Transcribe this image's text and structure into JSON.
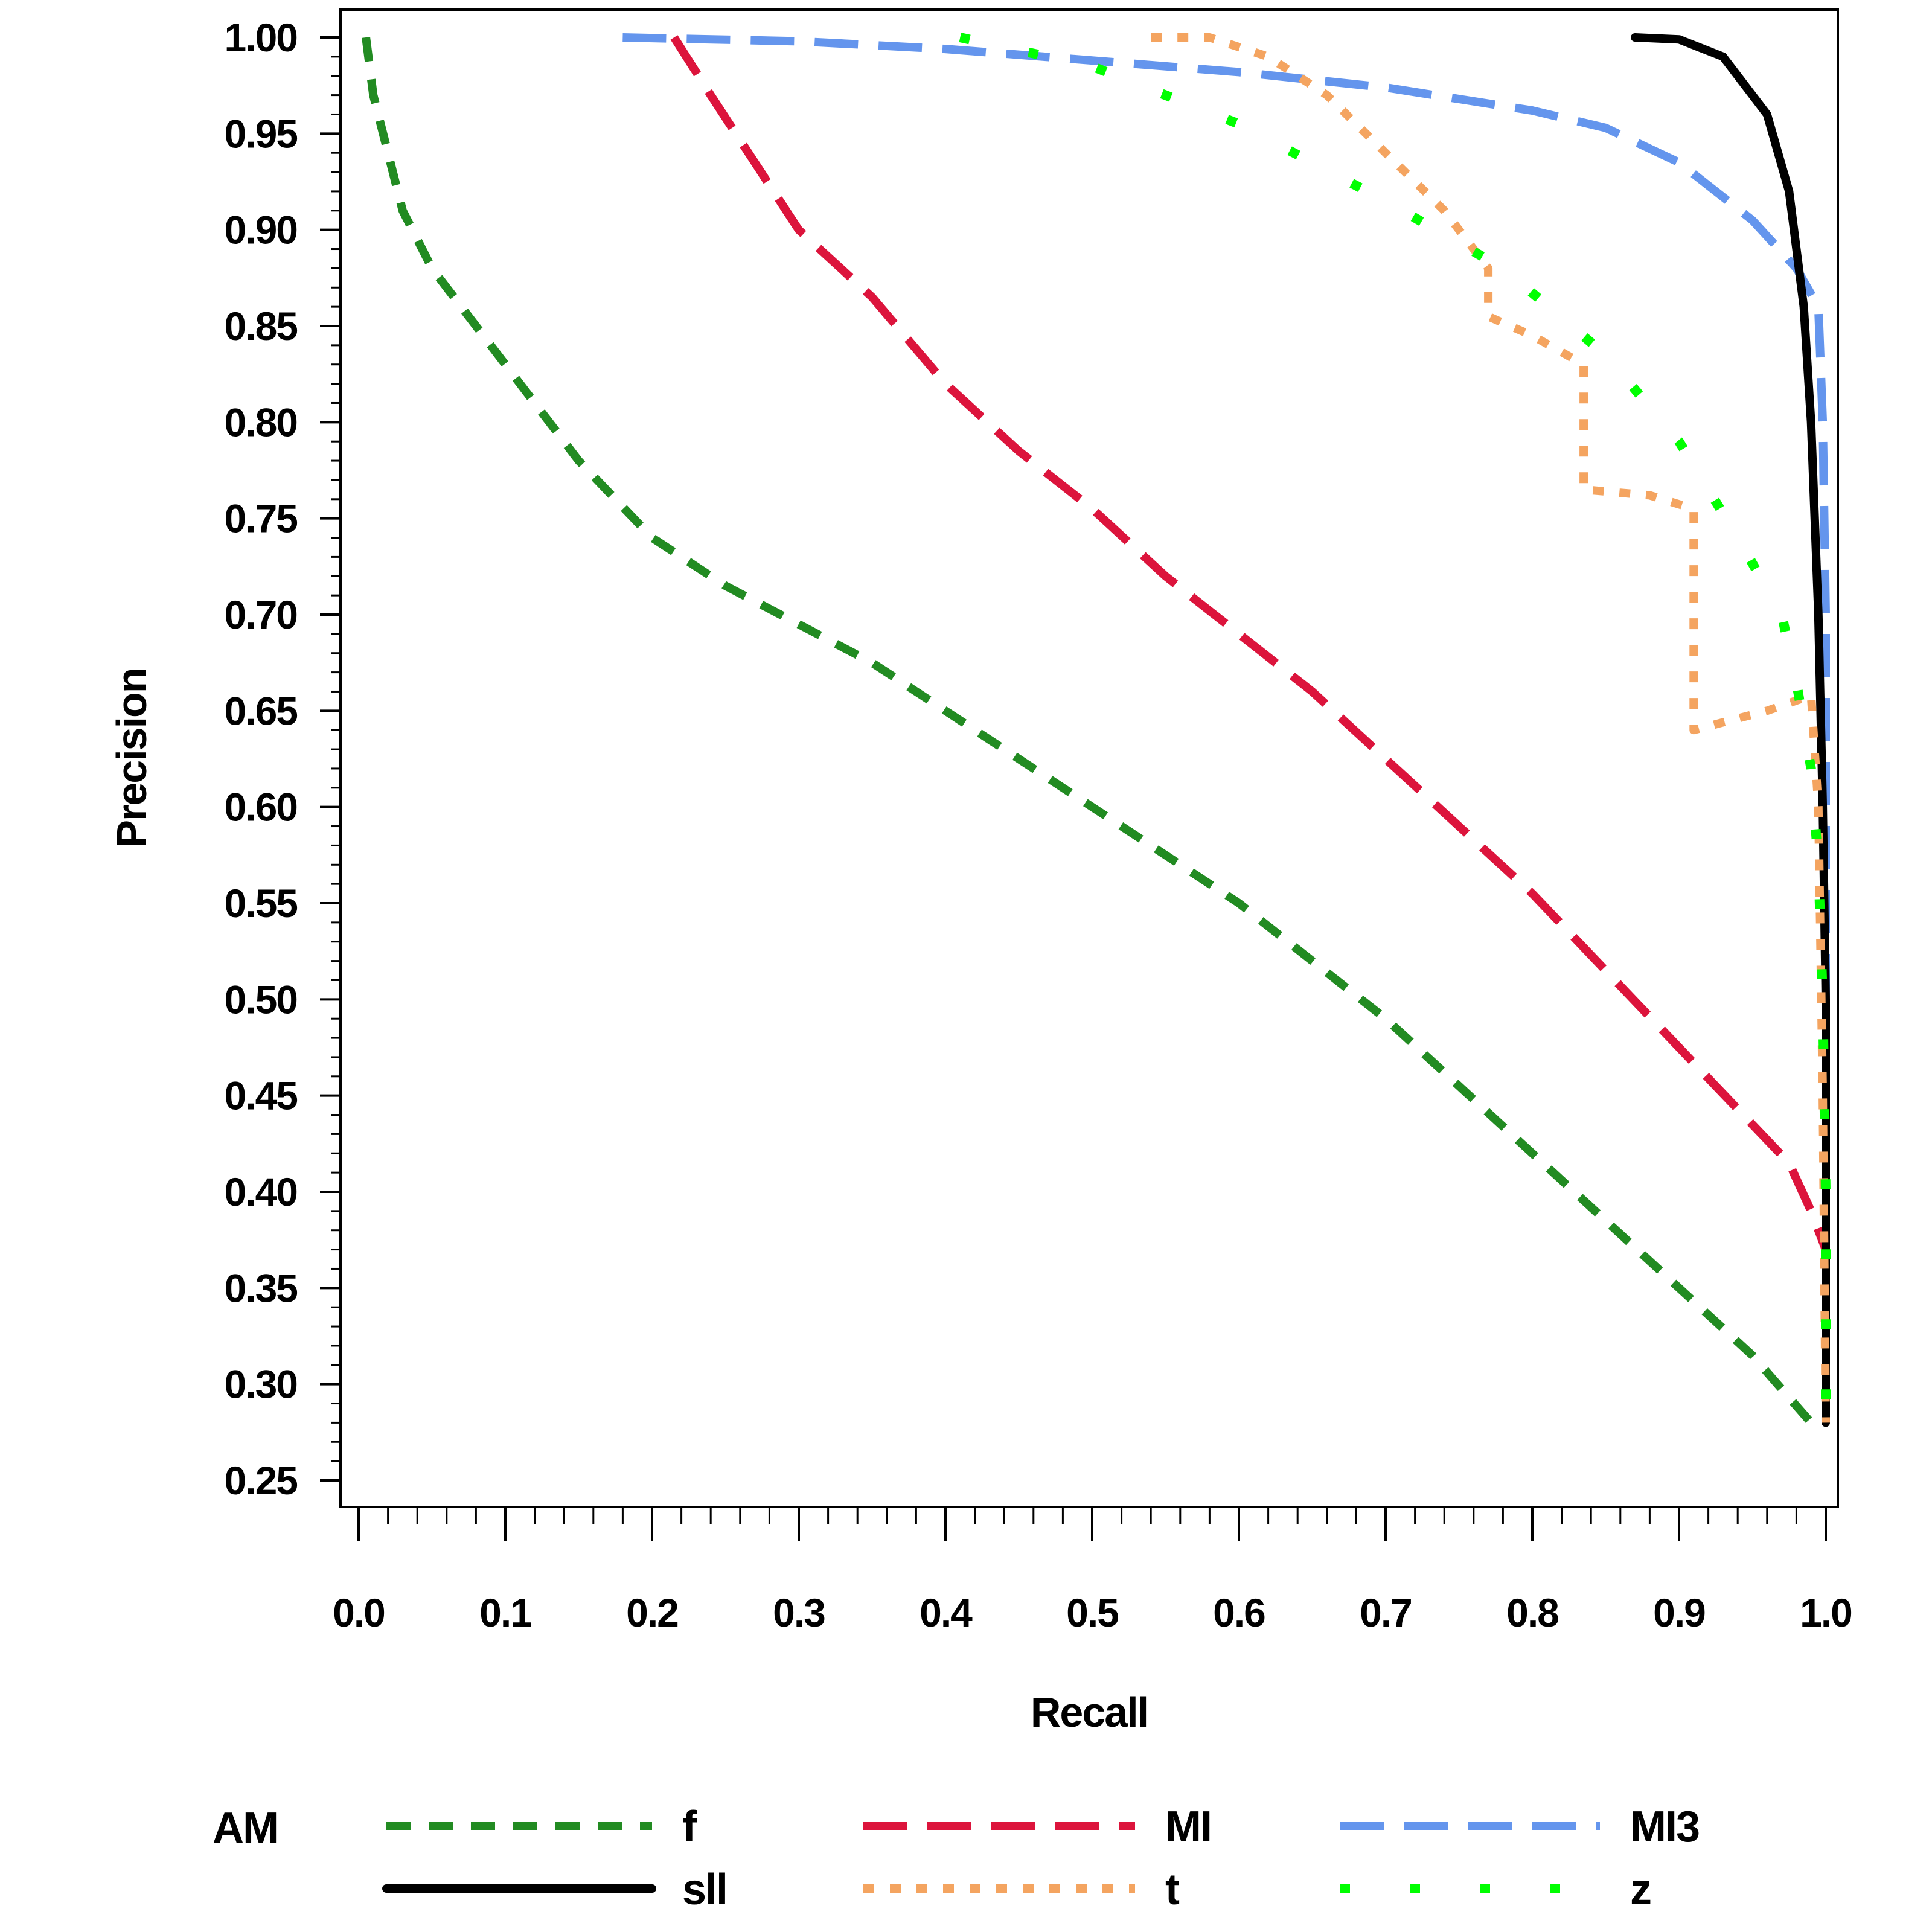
{
  "chart_data": {
    "type": "line",
    "title": "",
    "xlabel": "Recall",
    "ylabel": "Precision",
    "xlim": [
      0.0,
      1.0
    ],
    "ylim": [
      0.25,
      1.0
    ],
    "x_ticks": [
      "0.0",
      "0.1",
      "0.2",
      "0.3",
      "0.4",
      "0.5",
      "0.6",
      "0.7",
      "0.8",
      "0.9",
      "1.0"
    ],
    "y_ticks": [
      "1.00",
      "0.95",
      "0.90",
      "0.85",
      "0.80",
      "0.75",
      "0.70",
      "0.65",
      "0.60",
      "0.55",
      "0.50",
      "0.45",
      "0.40",
      "0.35",
      "0.30",
      "0.25"
    ],
    "grid": false,
    "legend": {
      "title": "AM",
      "placement": "bottom"
    },
    "series": [
      {
        "name": "f",
        "color": "#228B22",
        "dash": "dashed",
        "points": [
          [
            0.005,
            1.0
          ],
          [
            0.01,
            0.97
          ],
          [
            0.02,
            0.94
          ],
          [
            0.03,
            0.91
          ],
          [
            0.05,
            0.88
          ],
          [
            0.07,
            0.86
          ],
          [
            0.1,
            0.83
          ],
          [
            0.15,
            0.78
          ],
          [
            0.2,
            0.74
          ],
          [
            0.25,
            0.715
          ],
          [
            0.3,
            0.695
          ],
          [
            0.35,
            0.675
          ],
          [
            0.4,
            0.65
          ],
          [
            0.45,
            0.625
          ],
          [
            0.5,
            0.6
          ],
          [
            0.55,
            0.575
          ],
          [
            0.6,
            0.55
          ],
          [
            0.65,
            0.52
          ],
          [
            0.7,
            0.49
          ],
          [
            0.75,
            0.455
          ],
          [
            0.8,
            0.42
          ],
          [
            0.85,
            0.385
          ],
          [
            0.9,
            0.35
          ],
          [
            0.95,
            0.315
          ],
          [
            0.99,
            0.28
          ]
        ]
      },
      {
        "name": "MI",
        "color": "#DC143C",
        "dash": "long-dashed",
        "points": [
          [
            0.215,
            1.0
          ],
          [
            0.24,
            0.97
          ],
          [
            0.27,
            0.935
          ],
          [
            0.3,
            0.9
          ],
          [
            0.35,
            0.865
          ],
          [
            0.4,
            0.82
          ],
          [
            0.45,
            0.785
          ],
          [
            0.5,
            0.755
          ],
          [
            0.55,
            0.72
          ],
          [
            0.6,
            0.69
          ],
          [
            0.65,
            0.66
          ],
          [
            0.7,
            0.625
          ],
          [
            0.75,
            0.59
          ],
          [
            0.8,
            0.555
          ],
          [
            0.85,
            0.515
          ],
          [
            0.9,
            0.475
          ],
          [
            0.95,
            0.435
          ],
          [
            0.975,
            0.415
          ],
          [
            0.99,
            0.39
          ],
          [
            1.0,
            0.37
          ]
        ]
      },
      {
        "name": "MI3",
        "color": "#6495ED",
        "dash": "long-dashed",
        "points": [
          [
            0.18,
            1.0
          ],
          [
            0.3,
            0.998
          ],
          [
            0.4,
            0.994
          ],
          [
            0.5,
            0.988
          ],
          [
            0.6,
            0.982
          ],
          [
            0.7,
            0.974
          ],
          [
            0.8,
            0.962
          ],
          [
            0.85,
            0.953
          ],
          [
            0.9,
            0.935
          ],
          [
            0.95,
            0.905
          ],
          [
            0.98,
            0.88
          ],
          [
            0.995,
            0.86
          ],
          [
            0.998,
            0.8
          ],
          [
            1.0,
            0.7
          ],
          [
            1.0,
            0.6
          ],
          [
            1.0,
            0.5
          ],
          [
            1.0,
            0.35
          ],
          [
            1.0,
            0.28
          ]
        ]
      },
      {
        "name": "sll",
        "color": "#000000",
        "dash": "solid",
        "points": [
          [
            0.87,
            1.0
          ],
          [
            0.9,
            0.999
          ],
          [
            0.93,
            0.99
          ],
          [
            0.96,
            0.96
          ],
          [
            0.975,
            0.92
          ],
          [
            0.985,
            0.86
          ],
          [
            0.99,
            0.8
          ],
          [
            0.995,
            0.7
          ],
          [
            0.998,
            0.6
          ],
          [
            1.0,
            0.5
          ],
          [
            1.0,
            0.4
          ],
          [
            1.0,
            0.28
          ]
        ]
      },
      {
        "name": "t",
        "color": "#F4A460",
        "dash": "dotted",
        "points": [
          [
            0.54,
            1.0
          ],
          [
            0.58,
            1.0
          ],
          [
            0.62,
            0.99
          ],
          [
            0.66,
            0.97
          ],
          [
            0.7,
            0.94
          ],
          [
            0.74,
            0.91
          ],
          [
            0.77,
            0.88
          ],
          [
            0.77,
            0.855
          ],
          [
            0.8,
            0.845
          ],
          [
            0.835,
            0.83
          ],
          [
            0.835,
            0.765
          ],
          [
            0.88,
            0.762
          ],
          [
            0.91,
            0.755
          ],
          [
            0.91,
            0.64
          ],
          [
            0.96,
            0.65
          ],
          [
            0.99,
            0.658
          ],
          [
            0.995,
            0.6
          ],
          [
            0.998,
            0.45
          ],
          [
            1.0,
            0.28
          ]
        ]
      },
      {
        "name": "z",
        "color": "#00FF00",
        "dash": "dotted",
        "points": [
          [
            0.41,
            1.0
          ],
          [
            0.5,
            0.985
          ],
          [
            0.6,
            0.955
          ],
          [
            0.7,
            0.915
          ],
          [
            0.78,
            0.88
          ],
          [
            0.85,
            0.835
          ],
          [
            0.9,
            0.79
          ],
          [
            0.94,
            0.74
          ],
          [
            0.97,
            0.7
          ],
          [
            0.98,
            0.665
          ],
          [
            0.99,
            0.62
          ],
          [
            0.995,
            0.57
          ],
          [
            0.998,
            0.5
          ],
          [
            1.0,
            0.4
          ],
          [
            1.0,
            0.29
          ]
        ]
      }
    ]
  }
}
